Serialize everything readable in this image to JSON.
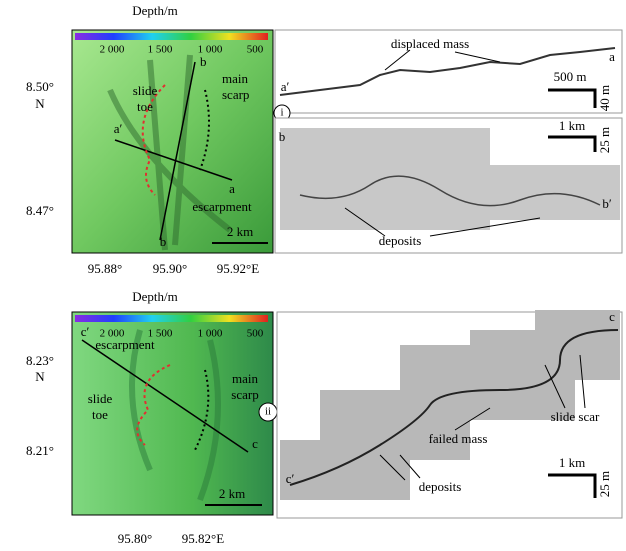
{
  "panels": [
    {
      "label": "i",
      "map": {
        "depth_title": "Depth/m",
        "colorbar_ticks": [
          "2 000",
          "1 500",
          "1 000",
          "500"
        ],
        "lat_labels": [
          "8.50°",
          "N",
          "8.47°"
        ],
        "lon_labels": [
          "95.88°",
          "95.90°",
          "95.92°E"
        ],
        "annotations": [
          "b",
          "main",
          "scarp",
          "slide",
          "toe",
          "a′",
          "a",
          "escarpment",
          "b"
        ],
        "scale_bar": "2 km"
      },
      "profiles": [
        {
          "annotations": [
            "displaced mass",
            "a′",
            "a"
          ],
          "scale_h": "500 m",
          "scale_v": "40 m"
        },
        {
          "annotations": [
            "b",
            "b′",
            "deposits"
          ],
          "scale_h": "1 km",
          "scale_v": "25 m"
        }
      ]
    },
    {
      "label": "ii",
      "map": {
        "depth_title": "Depth/m",
        "colorbar_ticks": [
          "2 000",
          "1 500",
          "1 000",
          "500"
        ],
        "lat_labels": [
          "8.23°",
          "N",
          "8.21°"
        ],
        "lon_labels": [
          "95.80°",
          "95.82°E"
        ],
        "annotations": [
          "c′",
          "escarpment",
          "main",
          "scarp",
          "slide",
          "toe",
          "c"
        ],
        "scale_bar": "2 km"
      },
      "profiles": [
        {
          "annotations": [
            "c",
            "slide scar",
            "failed mass",
            "deposits",
            "c′"
          ],
          "scale_h": "1 km",
          "scale_v": "25 m"
        }
      ]
    }
  ]
}
